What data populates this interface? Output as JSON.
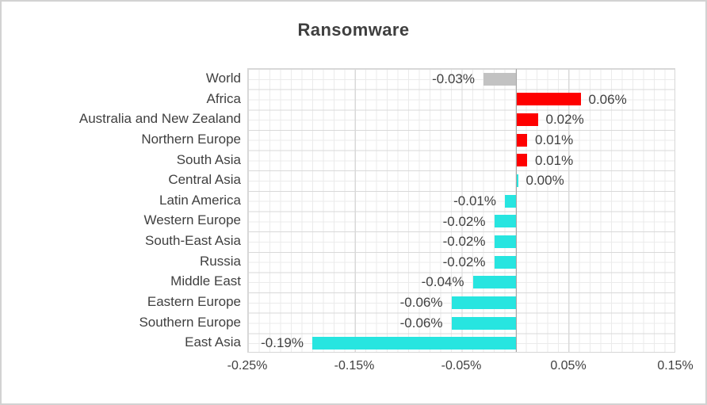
{
  "header": {
    "title": "Ransomware"
  },
  "colors": {
    "positive_bar": "#fe0000",
    "negative_bar": "#27e5e0",
    "world_bar": "#c2c2c2",
    "text": "#404040",
    "grid_minor": "#ebebeb",
    "grid_major": "#d9d9d9",
    "zero_axis": "#a6a6a6",
    "frame_border": "#d2d2d2"
  },
  "chart_data": {
    "type": "bar",
    "orientation": "horizontal",
    "title": "Ransomware",
    "xlabel": "",
    "ylabel": "",
    "xlim": [
      -0.25,
      0.15
    ],
    "grid": true,
    "legend_position": "none",
    "x_ticks": [
      {
        "label": "-0.25%",
        "value": -0.25
      },
      {
        "label": "-0.15%",
        "value": -0.15
      },
      {
        "label": "-0.05%",
        "value": -0.05
      },
      {
        "label": "0.05%",
        "value": 0.05
      },
      {
        "label": "0.15%",
        "value": 0.15
      }
    ],
    "rows": [
      {
        "category": "World",
        "value": -0.03,
        "label": "-0.03%",
        "color_key": "world_bar"
      },
      {
        "category": "Africa",
        "value": 0.06,
        "label": "0.06%",
        "color_key": "positive_bar"
      },
      {
        "category": "Australia and New Zealand",
        "value": 0.02,
        "label": "0.02%",
        "color_key": "positive_bar"
      },
      {
        "category": "Northern Europe",
        "value": 0.01,
        "label": "0.01%",
        "color_key": "positive_bar"
      },
      {
        "category": "South Asia",
        "value": 0.01,
        "label": "0.01%",
        "color_key": "positive_bar"
      },
      {
        "category": "Central Asia",
        "value": 0.0,
        "label": "0.00%",
        "color_key": "negative_bar"
      },
      {
        "category": "Latin America",
        "value": -0.01,
        "label": "-0.01%",
        "color_key": "negative_bar"
      },
      {
        "category": "Western Europe",
        "value": -0.02,
        "label": "-0.02%",
        "color_key": "negative_bar"
      },
      {
        "category": "South-East Asia",
        "value": -0.02,
        "label": "-0.02%",
        "color_key": "negative_bar"
      },
      {
        "category": "Russia",
        "value": -0.02,
        "label": "-0.02%",
        "color_key": "negative_bar"
      },
      {
        "category": "Middle East",
        "value": -0.04,
        "label": "-0.04%",
        "color_key": "negative_bar"
      },
      {
        "category": "Eastern Europe",
        "value": -0.06,
        "label": "-0.06%",
        "color_key": "negative_bar"
      },
      {
        "category": "Southern Europe",
        "value": -0.06,
        "label": "-0.06%",
        "color_key": "negative_bar"
      },
      {
        "category": "East Asia",
        "value": -0.19,
        "label": "-0.19%",
        "color_key": "negative_bar"
      }
    ]
  }
}
